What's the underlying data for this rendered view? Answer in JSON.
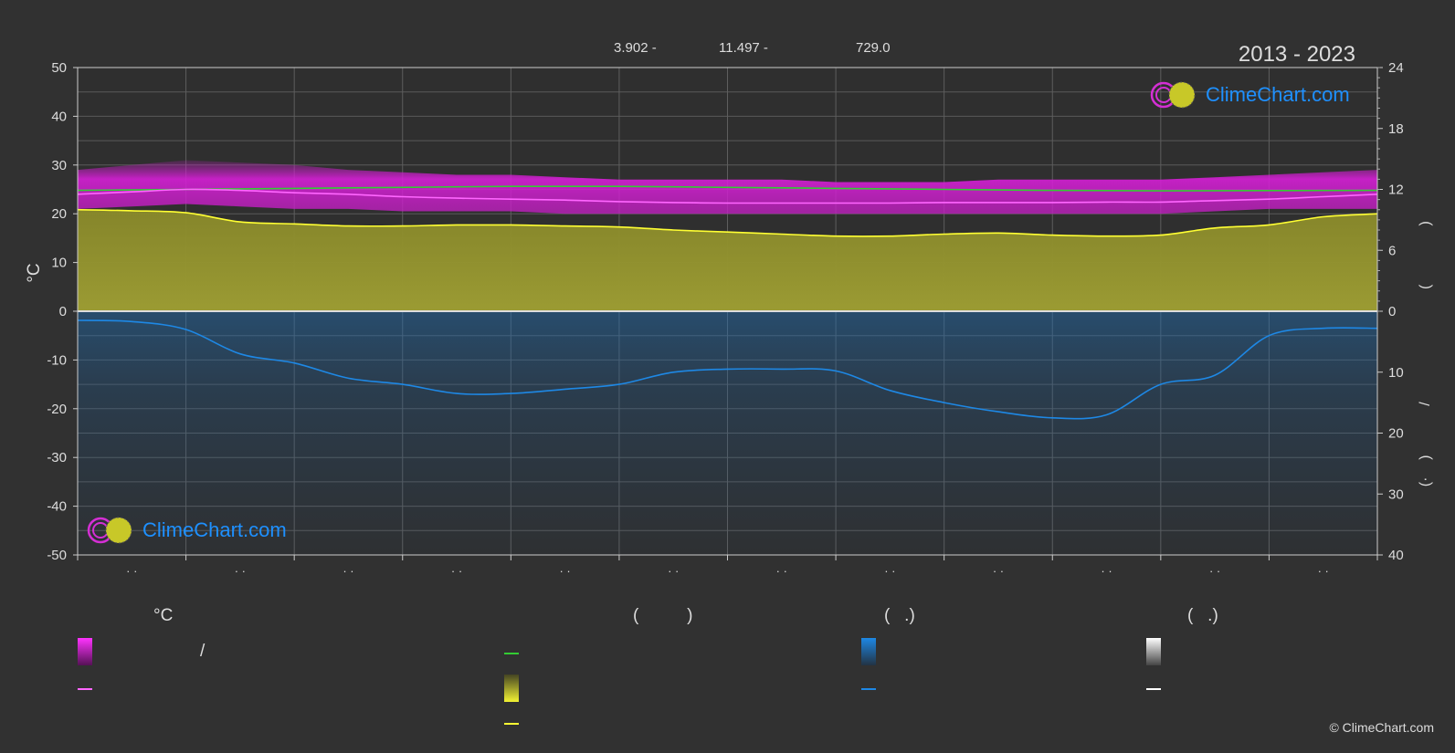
{
  "header": {
    "period": "2013 - 2023",
    "coords": [
      "3.902 -",
      "11.497 -",
      "729.0"
    ]
  },
  "logo": {
    "text": "ClimeChart.com"
  },
  "copyright": "© ClimeChart.com",
  "legend": {
    "col1_head": "°C",
    "col2_head": "(          )",
    "col3_head": "(   .)",
    "col4_head": "(   .)",
    "slash": "/",
    "colors": {
      "temp_band": "#d61fd6",
      "temp_line": "#ff66ff",
      "daylight_line": "#33cc33",
      "sunshine_band": "#e6e633",
      "sunshine_line": "#ffff33",
      "precip_band": "#1e88e5",
      "precip_line": "#1e88e5",
      "snow_band": "#ffffff",
      "snow_line": "#ffffff"
    }
  },
  "chart_data": {
    "type": "area",
    "title": "2013 - 2023",
    "ylabel": "°C",
    "ylim": [
      -50,
      50
    ],
    "y_ticks": [
      50,
      40,
      30,
      20,
      10,
      0,
      -10,
      -20,
      -30,
      -40,
      -50
    ],
    "y2_top_ticks": [
      24,
      18,
      12,
      6,
      0
    ],
    "y2_top_lim": [
      0,
      24
    ],
    "y2_bottom_ticks": [
      0,
      10,
      20,
      30,
      40
    ],
    "y2_bottom_lim": [
      0,
      40
    ],
    "right_axis_chars": [
      ")",
      "(",
      "/",
      ")",
      "(·"
    ],
    "month_labels": [
      "· ·",
      "· ·",
      "· ·",
      "· ·",
      "· ·",
      "· ·",
      "· ·",
      "· ·",
      "· ·",
      "· ·",
      "· ·",
      "· ·"
    ],
    "x": [
      0,
      0.5,
      1,
      1.5,
      2,
      2.5,
      3,
      3.5,
      4,
      4.5,
      5,
      5.5,
      6,
      6.5,
      7,
      7.5,
      8,
      8.5,
      9,
      9.5,
      10,
      10.5,
      11,
      11.5,
      12
    ],
    "series": [
      {
        "key": "temp_max",
        "values": [
          29,
          30,
          31,
          30.5,
          30,
          29,
          28.5,
          28,
          28,
          27.5,
          27,
          27,
          27,
          27,
          26.5,
          26.5,
          26.5,
          27,
          27,
          27,
          27,
          27.5,
          28,
          28.5,
          29
        ]
      },
      {
        "key": "temp_min",
        "values": [
          21,
          21.5,
          22,
          21.5,
          21,
          21,
          20.5,
          20.5,
          20.5,
          20,
          20,
          20,
          20,
          20,
          20,
          20,
          20,
          20,
          20,
          20,
          20,
          20.5,
          21,
          21,
          21
        ]
      },
      {
        "key": "temp_mean",
        "values": [
          24,
          24.5,
          25,
          24.8,
          24.3,
          24,
          23.5,
          23.2,
          23,
          22.8,
          22.5,
          22.3,
          22.2,
          22.2,
          22.2,
          22.2,
          22.3,
          22.3,
          22.3,
          22.4,
          22.4,
          22.7,
          23,
          23.5,
          24
        ]
      },
      {
        "key": "daylight",
        "values": [
          11.9,
          11.95,
          12.0,
          12.05,
          12.1,
          12.15,
          12.2,
          12.25,
          12.3,
          12.3,
          12.3,
          12.25,
          12.2,
          12.15,
          12.1,
          12.05,
          12.0,
          11.95,
          11.9,
          11.88,
          11.86,
          11.87,
          11.88,
          11.89,
          11.9
        ]
      },
      {
        "key": "sunshine",
        "values": [
          10.0,
          9.9,
          9.7,
          8.8,
          8.6,
          8.4,
          8.4,
          8.5,
          8.5,
          8.4,
          8.3,
          8.0,
          7.8,
          7.6,
          7.4,
          7.4,
          7.6,
          7.7,
          7.5,
          7.4,
          7.5,
          8.2,
          8.5,
          9.3,
          9.6
        ]
      },
      {
        "key": "precip_mm",
        "values": [
          1.5,
          1.7,
          3.0,
          7.0,
          8.5,
          11.0,
          12.0,
          13.5,
          13.5,
          12.8,
          12.0,
          10.0,
          9.5,
          9.5,
          9.8,
          13.0,
          15.0,
          16.5,
          17.5,
          17.0,
          12.0,
          10.5,
          4.0,
          2.8,
          2.8
        ]
      }
    ]
  }
}
